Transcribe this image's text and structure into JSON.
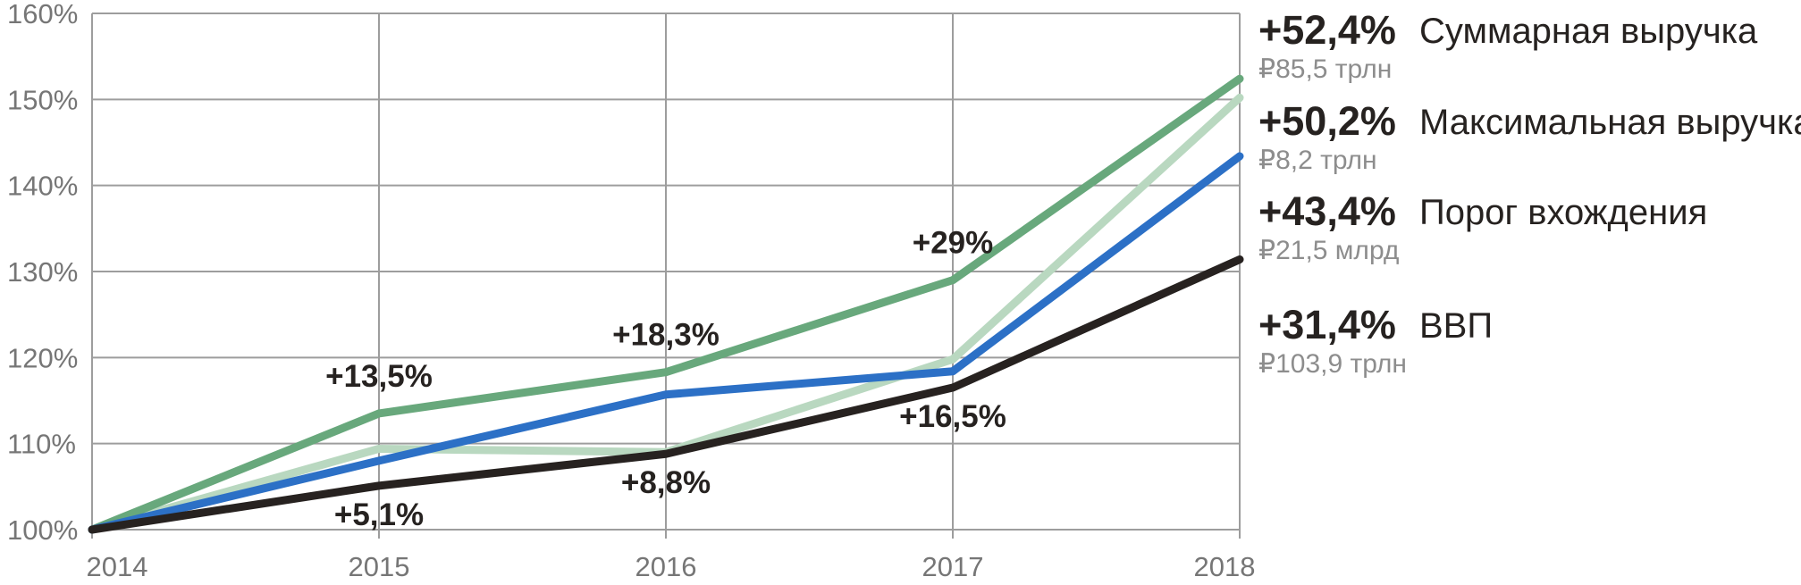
{
  "chart_data": {
    "type": "line",
    "x": [
      2014,
      2015,
      2016,
      2017,
      2018
    ],
    "x_tick_labels": [
      "2014",
      "2015",
      "2016",
      "2017",
      "2018"
    ],
    "y_ticks": [
      100,
      110,
      120,
      130,
      140,
      150,
      160
    ],
    "y_tick_labels": [
      "100%",
      "110%",
      "120%",
      "130%",
      "140%",
      "150%",
      "160%"
    ],
    "ylim": [
      100,
      160
    ],
    "grid": true,
    "legend_position": "right",
    "series": [
      {
        "name": "Суммарная выручка",
        "color": "#68a87c",
        "values": [
          100,
          113.5,
          118.3,
          129,
          152.4
        ],
        "final_change": "+52,4%",
        "final_value": "₽85,5 трлн"
      },
      {
        "name": "Максимальная выручка",
        "color": "#b9d8c0",
        "values": [
          100,
          109.4,
          109,
          119.8,
          150.2
        ],
        "final_change": "+50,2%",
        "final_value": "₽8,2 трлн"
      },
      {
        "name": "Порог вхождения",
        "color": "#2c70c6",
        "values": [
          100,
          108,
          115.7,
          118.4,
          143.4
        ],
        "final_change": "+43,4%",
        "final_value": "₽21,5 млрд"
      },
      {
        "name": "ВВП",
        "color": "#272220",
        "values": [
          100,
          105.1,
          108.8,
          116.5,
          131.4
        ],
        "final_change": "+31,4%",
        "final_value": "₽103,9 трлн"
      }
    ],
    "annotations": [
      {
        "text": "+13,5%",
        "year": 2015,
        "value": 113.5,
        "placement": "above"
      },
      {
        "text": "+18,3%",
        "year": 2016,
        "value": 118.3,
        "placement": "above"
      },
      {
        "text": "+29%",
        "year": 2017,
        "value": 129,
        "placement": "above"
      },
      {
        "text": "+5,1%",
        "year": 2015,
        "value": 105.1,
        "placement": "below"
      },
      {
        "text": "+8,8%",
        "year": 2016,
        "value": 108.8,
        "placement": "below"
      },
      {
        "text": "+16,5%",
        "year": 2017,
        "value": 116.5,
        "placement": "below"
      }
    ],
    "colors": {
      "grid": "#9d9d9d",
      "axis_text": "#767676",
      "annotation_text": "#262220",
      "legend_sub_text": "#8d8d8d"
    }
  }
}
